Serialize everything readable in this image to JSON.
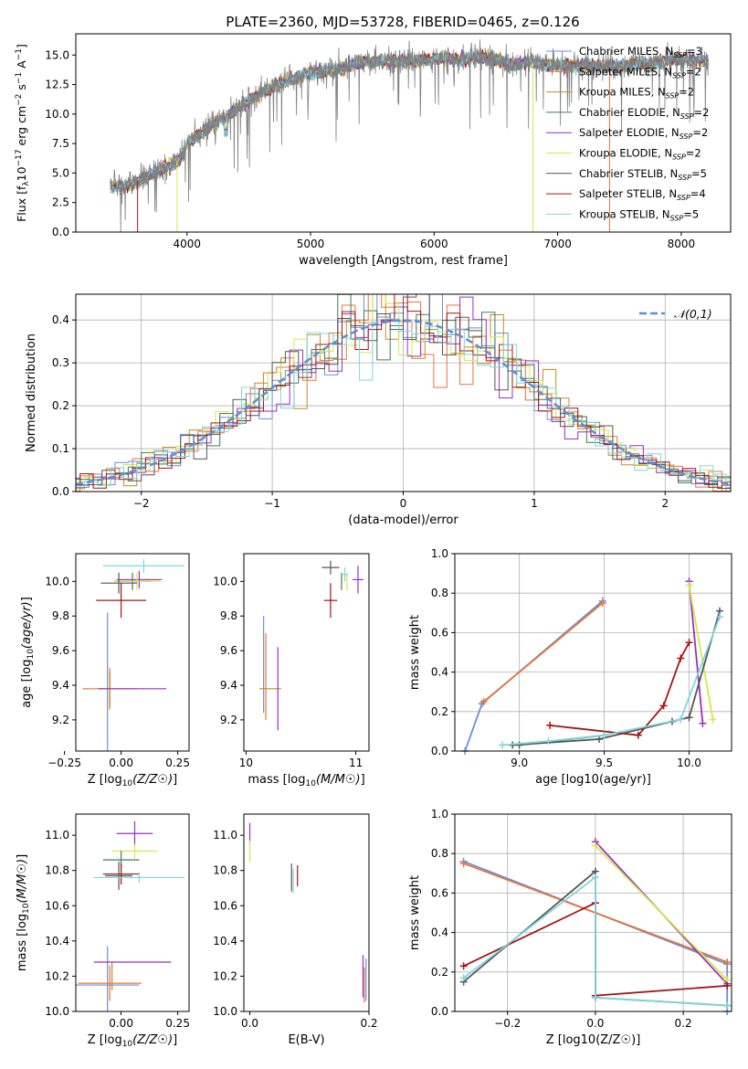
{
  "figure": {
    "title": "PLATE=2360, MJD=53728, FIBERID=0465, z=0.126"
  },
  "colors": {
    "Chabrier MILES": "#6a8fd8",
    "Salpeter MILES": "#e8743b",
    "Kroupa MILES": "#c98a1a",
    "Chabrier ELODIE": "#3f7a5a",
    "Salpeter ELODIE": "#9b2fc2",
    "Kroupa ELODIE": "#d4e84a",
    "Chabrier STELIB": "#555555",
    "Salpeter STELIB": "#a31515",
    "Kroupa STELIB": "#7fd6e0",
    "spectrum": "#808080",
    "normal": "#5b8fd6"
  },
  "chart_data": [
    {
      "id": "spectrum",
      "type": "line",
      "title": "PLATE=2360, MJD=53728, FIBERID=0465, z=0.126",
      "xlabel": "wavelength [Angstrom, rest frame]",
      "ylabel": "Flux [f_λ 10^-17 erg cm^-2 s^-1 A^-1]",
      "xlim": [
        3100,
        8400
      ],
      "ylim": [
        0,
        16.8
      ],
      "xticks": [
        "4000",
        "5000",
        "6000",
        "7000",
        "8000"
      ],
      "yticks": [
        "0.0",
        "2.5",
        "5.0",
        "7.5",
        "10.0",
        "12.5",
        "15.0"
      ],
      "legend_position": "top-right",
      "continuum_x": [
        3400,
        3500,
        3650,
        3800,
        3950,
        4000,
        4200,
        4400,
        4600,
        4800,
        5000,
        5200,
        5400,
        5600,
        5800,
        6000,
        6200,
        6400,
        6600,
        6800,
        7000,
        7200,
        7400,
        7600,
        7800,
        8000,
        8200
      ],
      "continuum_y": [
        3.8,
        3.9,
        4.6,
        5.3,
        6.3,
        7.5,
        9.0,
        10.4,
        11.8,
        12.8,
        13.4,
        13.8,
        14.4,
        14.5,
        14.5,
        14.7,
        14.6,
        14.8,
        14.3,
        14.3,
        14.1,
        14.2,
        14.0,
        14.2,
        14.3,
        14.7,
        14.5
      ],
      "legend": [
        {
          "label": "Chabrier MILES, N",
          "sub": "SSP",
          "count": "=3"
        },
        {
          "label": "Salpeter MILES, N",
          "sub": "SSP",
          "count": "=2"
        },
        {
          "label": "Kroupa MILES, N",
          "sub": "SSP",
          "count": "=2"
        },
        {
          "label": "Chabrier ELODIE, N",
          "sub": "SSP",
          "count": "=2"
        },
        {
          "label": "Salpeter ELODIE, N",
          "sub": "SSP",
          "count": "=2"
        },
        {
          "label": "Kroupa ELODIE, N",
          "sub": "SSP",
          "count": "=2"
        },
        {
          "label": "Chabrier STELIB, N",
          "sub": "SSP",
          "count": "=5"
        },
        {
          "label": "Salpeter STELIB, N",
          "sub": "SSP",
          "count": "=4"
        },
        {
          "label": "Kroupa STELIB, N",
          "sub": "SSP",
          "count": "=5"
        }
      ]
    },
    {
      "id": "residuals",
      "type": "line",
      "xlabel": "(data-model)/error",
      "ylabel": "Normed distribution",
      "xlim": [
        -2.5,
        2.5
      ],
      "ylim": [
        0,
        0.46
      ],
      "xticks": [
        "−2",
        "−1",
        "0",
        "1",
        "2"
      ],
      "yticks": [
        "0.0",
        "0.1",
        "0.2",
        "0.3",
        "0.4"
      ],
      "grid": true,
      "legend_position": "top-right",
      "normal_label": "𝒩(0,1)"
    },
    {
      "id": "age_vs_Z",
      "type": "scatter",
      "xlabel": "Z [log10(Z/Z☉)]",
      "ylabel": "age [log10(age/yr)]",
      "xlim": [
        -0.2,
        0.3
      ],
      "ylim": [
        9.02,
        10.16
      ],
      "xticks": [
        "−0.25",
        "0.00",
        "0.25"
      ],
      "yticks": [
        "9.2",
        "9.4",
        "9.6",
        "9.8",
        "10.0"
      ],
      "points": [
        {
          "s": "Chabrier MILES",
          "x": -0.06,
          "xe": 0.0,
          "y": 9.38,
          "ye": 0.44
        },
        {
          "s": "Salpeter MILES",
          "x": -0.05,
          "xe": 0.12,
          "y": 9.38,
          "ye": 0.12
        },
        {
          "s": "Kroupa MILES",
          "x": -0.05,
          "xe": 0.0,
          "y": 9.38,
          "ye": 0.1
        },
        {
          "s": "Chabrier ELODIE",
          "x": 0.05,
          "xe": 0.08,
          "y": 10.0,
          "ye": 0.05
        },
        {
          "s": "Salpeter ELODIE",
          "x": 0.08,
          "xe": 0.1,
          "y": 10.01,
          "ye": 0.05
        },
        {
          "s": "Kroupa ELODIE",
          "x": 0.07,
          "xe": 0.1,
          "y": 10.0,
          "ye": 0.05
        },
        {
          "s": "Chabrier STELIB",
          "x": -0.01,
          "xe": 0.08,
          "y": 9.99,
          "ye": 0.06
        },
        {
          "s": "Salpeter STELIB",
          "x": 0.0,
          "xe": 0.11,
          "y": 9.89,
          "ye": 0.1
        },
        {
          "s": "Kroupa STELIB",
          "x": 0.1,
          "xe": 0.18,
          "y": 10.09,
          "ye": 0.04
        },
        {
          "s": "Salpeter ELODIE",
          "x": 0.05,
          "xe": 0.15,
          "y": 9.38,
          "ye": 0.0
        }
      ]
    },
    {
      "id": "age_vs_mass",
      "type": "scatter",
      "xlabel": "mass [log10(M/M☉)]",
      "ylabel": "",
      "xlim": [
        9.98,
        11.12
      ],
      "ylim": [
        9.02,
        10.16
      ],
      "xticks": [
        "10",
        "11"
      ],
      "yticks": [
        "9.2",
        "9.4",
        "9.6",
        "9.8",
        "10.0"
      ],
      "points": [
        {
          "s": "Chabrier MILES",
          "x": 10.16,
          "xe": 0.0,
          "y": 9.52,
          "ye": 0.28
        },
        {
          "s": "Salpeter MILES",
          "x": 10.18,
          "xe": 0.0,
          "y": 9.45,
          "ye": 0.25
        },
        {
          "s": "Kroupa MILES",
          "x": 10.22,
          "xe": 0.1,
          "y": 9.38,
          "ye": 0.0
        },
        {
          "s": "Salpeter ELODIE",
          "x": 10.29,
          "xe": 0.0,
          "y": 9.38,
          "ye": 0.24
        },
        {
          "s": "Chabrier ELODIE",
          "x": 10.87,
          "xe": 0.0,
          "y": 10.0,
          "ye": 0.05
        },
        {
          "s": "Salpeter ELODIE",
          "x": 11.02,
          "xe": 0.05,
          "y": 10.01,
          "ye": 0.08
        },
        {
          "s": "Kroupa ELODIE",
          "x": 10.92,
          "xe": 0.0,
          "y": 10.0,
          "ye": 0.05
        },
        {
          "s": "Chabrier STELIB",
          "x": 10.77,
          "xe": 0.08,
          "y": 10.08,
          "ye": 0.04
        },
        {
          "s": "Salpeter STELIB",
          "x": 10.77,
          "xe": 0.06,
          "y": 9.89,
          "ye": 0.1
        },
        {
          "s": "Kroupa STELIB",
          "x": 10.9,
          "xe": 0.03,
          "y": 10.04,
          "ye": 0.04
        }
      ]
    },
    {
      "id": "weight_vs_age",
      "type": "line",
      "xlabel": "age [log10(age/yr)]",
      "ylabel": "mass weight",
      "xlim": [
        8.62,
        10.25
      ],
      "ylim": [
        0,
        1
      ],
      "xticks": [
        "9.0",
        "9.5",
        "10.0"
      ],
      "yticks": [
        "0.0",
        "0.2",
        "0.4",
        "0.6",
        "0.8",
        "1.0"
      ],
      "grid": true,
      "series": [
        {
          "s": "Chabrier MILES",
          "x": [
            8.68,
            8.78,
            9.49
          ],
          "y": [
            0.0,
            0.24,
            0.76
          ]
        },
        {
          "s": "Salpeter MILES",
          "x": [
            8.79,
            9.49
          ],
          "y": [
            0.25,
            0.75
          ]
        },
        {
          "s": "Chabrier ELODIE",
          "x": [
            9.0,
            9.5
          ],
          "y": [
            0.03,
            0.08
          ]
        },
        {
          "s": "Salpeter ELODIE",
          "x": [
            10.0,
            10.08
          ],
          "y": [
            0.86,
            0.14
          ]
        },
        {
          "s": "Kroupa ELODIE",
          "x": [
            10.0,
            10.14
          ],
          "y": [
            0.84,
            0.16
          ]
        },
        {
          "s": "Chabrier STELIB",
          "x": [
            8.96,
            9.47,
            9.9,
            10.0,
            10.18
          ],
          "y": [
            0.03,
            0.06,
            0.15,
            0.17,
            0.71
          ]
        },
        {
          "s": "Salpeter STELIB",
          "x": [
            9.18,
            9.7,
            9.85,
            9.95,
            10.0
          ],
          "y": [
            0.13,
            0.08,
            0.23,
            0.47,
            0.55
          ]
        },
        {
          "s": "Kroupa STELIB",
          "x": [
            8.9,
            9.17,
            9.5,
            9.95,
            10.18
          ],
          "y": [
            0.03,
            0.05,
            0.08,
            0.16,
            0.68
          ]
        }
      ]
    },
    {
      "id": "mass_vs_Z",
      "type": "scatter",
      "xlabel": "Z [log10(Z/Z☉)]",
      "ylabel": "mass [log10(M/M☉)]",
      "xlim": [
        -0.2,
        0.3
      ],
      "ylim": [
        10.0,
        11.12
      ],
      "xticks": [
        "0.00",
        "0.25"
      ],
      "yticks": [
        "10.0",
        "10.2",
        "10.4",
        "10.6",
        "10.8",
        "11.0"
      ],
      "points": [
        {
          "s": "Chabrier MILES",
          "x": -0.06,
          "xe": 0.14,
          "y": 10.15,
          "ye": 0.22
        },
        {
          "s": "Salpeter MILES",
          "x": -0.05,
          "xe": 0.14,
          "y": 10.16,
          "ye": 0.1
        },
        {
          "s": "Kroupa MILES",
          "x": -0.04,
          "xe": 0.0,
          "y": 10.2,
          "ye": 0.08
        },
        {
          "s": "Salpeter ELODIE",
          "x": 0.06,
          "xe": 0.08,
          "y": 11.01,
          "ye": 0.07
        },
        {
          "s": "Kroupa ELODIE",
          "x": 0.06,
          "xe": 0.1,
          "y": 10.91,
          "ye": 0.04
        },
        {
          "s": "Chabrier ELODIE",
          "x": 0.0,
          "xe": 0.08,
          "y": 10.86,
          "ye": 0.05
        },
        {
          "s": "Chabrier STELIB",
          "x": -0.01,
          "xe": 0.06,
          "y": 10.77,
          "ye": 0.08
        },
        {
          "s": "Salpeter STELIB",
          "x": 0.0,
          "xe": 0.08,
          "y": 10.78,
          "ye": 0.06
        },
        {
          "s": "Kroupa STELIB",
          "x": 0.08,
          "xe": 0.2,
          "y": 10.76,
          "ye": 0.03
        },
        {
          "s": "Salpeter ELODIE",
          "x": 0.05,
          "xe": 0.17,
          "y": 10.28,
          "ye": 0.0
        }
      ]
    },
    {
      "id": "mass_vs_ebv",
      "type": "scatter",
      "xlabel": "E(B-V)",
      "ylabel": "",
      "xlim": [
        -0.01,
        0.2
      ],
      "ylim": [
        10.0,
        11.12
      ],
      "xticks": [
        "0.0",
        "0.2"
      ],
      "yticks": [
        "10.0",
        "10.2",
        "10.4",
        "10.6",
        "10.8",
        "11.0"
      ],
      "points": [
        {
          "s": "Salpeter ELODIE",
          "x": 0.0,
          "xe": 0.0,
          "y": 11.01,
          "ye": 0.06
        },
        {
          "s": "Kroupa ELODIE",
          "x": 0.0,
          "xe": 0.0,
          "y": 10.91,
          "ye": 0.06
        },
        {
          "s": "Chabrier STELIB",
          "x": 0.07,
          "xe": 0.0,
          "y": 10.76,
          "ye": 0.08
        },
        {
          "s": "Kroupa STELIB",
          "x": 0.073,
          "xe": 0.0,
          "y": 10.74,
          "ye": 0.07
        },
        {
          "s": "Salpeter STELIB",
          "x": 0.08,
          "xe": 0.0,
          "y": 10.77,
          "ye": 0.06
        },
        {
          "s": "Salpeter ELODIE",
          "x": 0.19,
          "xe": 0.0,
          "y": 10.2,
          "ye": 0.12
        },
        {
          "s": "Salpeter MILES",
          "x": 0.192,
          "xe": 0.0,
          "y": 10.15,
          "ye": 0.1
        },
        {
          "s": "Chabrier MILES",
          "x": 0.195,
          "xe": 0.0,
          "y": 10.18,
          "ye": 0.12
        }
      ]
    },
    {
      "id": "weight_vs_Z",
      "type": "line",
      "xlabel": "Z [log10(Z/Z☉)]",
      "ylabel": "mass weight",
      "xlim": [
        -0.32,
        0.31
      ],
      "ylim": [
        0,
        1
      ],
      "xticks": [
        "−0.2",
        "0.0",
        "0.2"
      ],
      "yticks": [
        "0.0",
        "0.2",
        "0.4",
        "0.6",
        "0.8",
        "1.0"
      ],
      "grid": true,
      "series": [
        {
          "s": "Chabrier MILES",
          "x": [
            -0.3,
            0.3,
            0.3
          ],
          "y": [
            0.76,
            0.24,
            0.0
          ]
        },
        {
          "s": "Salpeter MILES",
          "x": [
            -0.3,
            0.3
          ],
          "y": [
            0.75,
            0.25
          ]
        },
        {
          "s": "Salpeter ELODIE",
          "x": [
            0.0,
            0.3
          ],
          "y": [
            0.86,
            0.14
          ]
        },
        {
          "s": "Kroupa ELODIE",
          "x": [
            0.0,
            0.3
          ],
          "y": [
            0.84,
            0.16
          ]
        },
        {
          "s": "Chabrier STELIB",
          "x": [
            -0.3,
            0.0,
            0.0,
            0.3
          ],
          "y": [
            0.15,
            0.71,
            0.07,
            0.03
          ]
        },
        {
          "s": "Salpeter STELIB",
          "x": [
            -0.3,
            0.0,
            0.0,
            0.3
          ],
          "y": [
            0.23,
            0.55,
            0.08,
            0.13
          ]
        },
        {
          "s": "Kroupa STELIB",
          "x": [
            -0.3,
            0.0,
            0.0,
            0.3
          ],
          "y": [
            0.17,
            0.68,
            0.07,
            0.03
          ]
        }
      ]
    }
  ]
}
